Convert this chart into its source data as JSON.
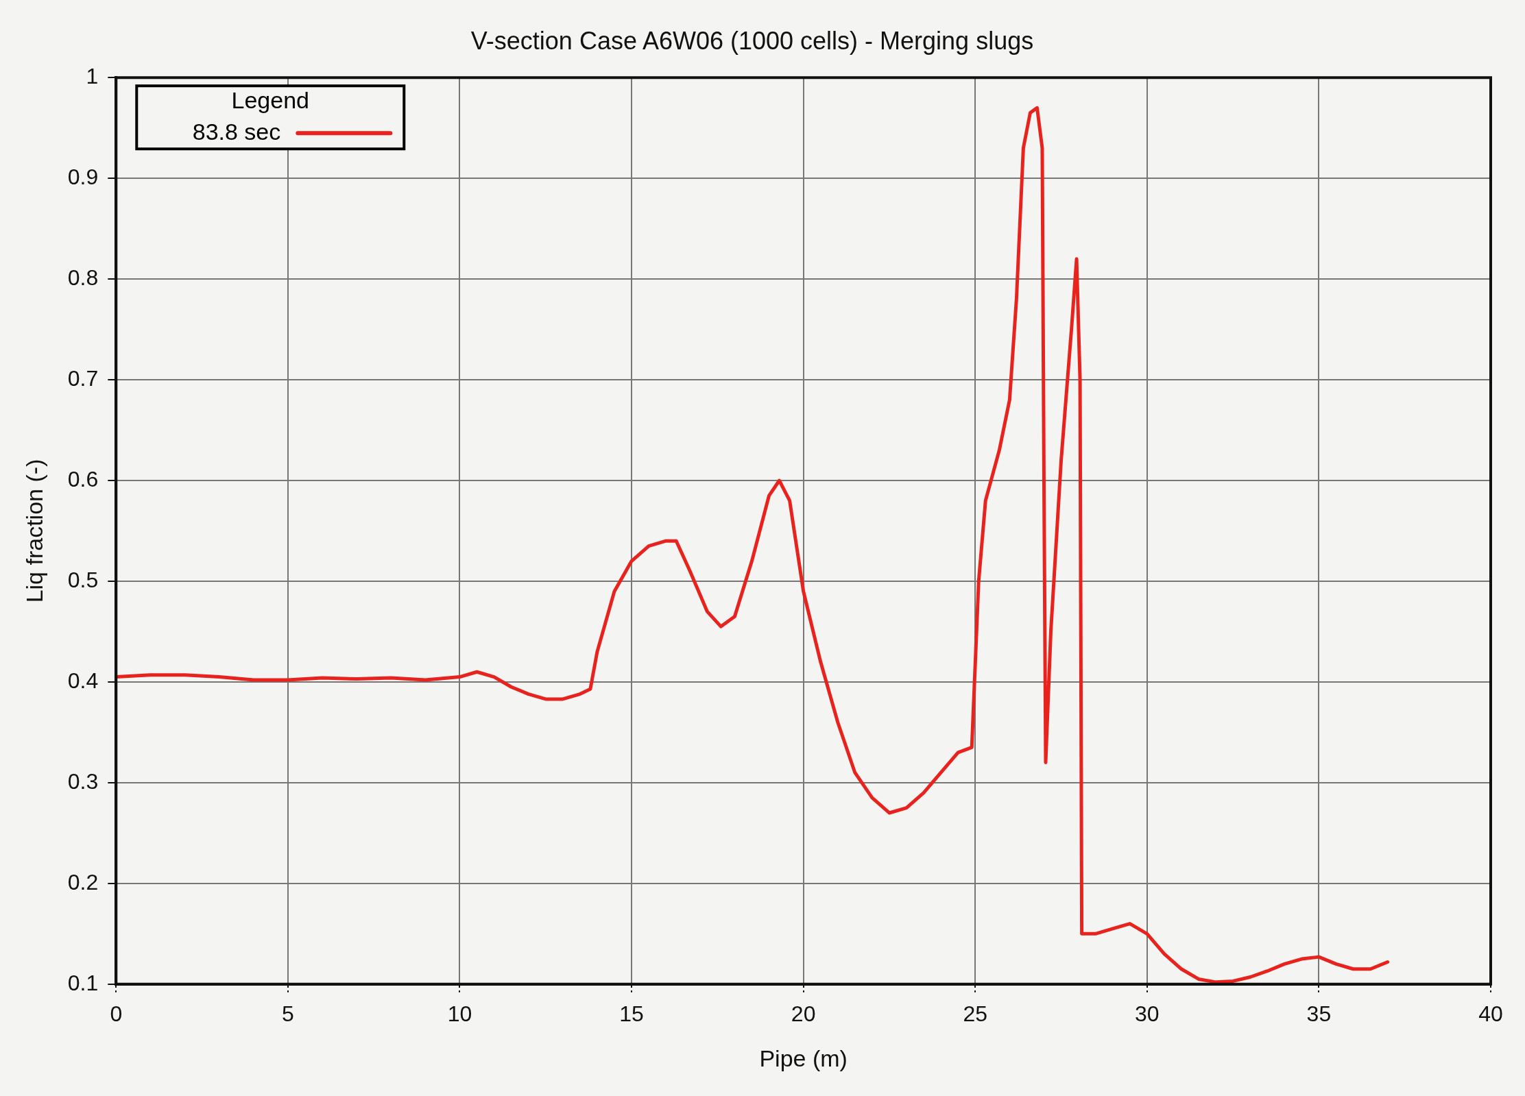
{
  "chart_data": {
    "type": "line",
    "title": "V-section Case A6W06 (1000 cells) - Merging slugs",
    "xlabel": "Pipe (m)",
    "ylabel": "Liq fraction (-)",
    "legend_title": "Legend",
    "legend": "top left",
    "grid": true,
    "marker": "none",
    "line_style": "solid",
    "xlim": [
      0,
      40
    ],
    "xticks": [
      0,
      5,
      10,
      15,
      20,
      25,
      30,
      35,
      40
    ],
    "ylim": [
      0.1,
      1
    ],
    "yticks": [
      0.1,
      0.2,
      0.3,
      0.4,
      0.5,
      0.6,
      0.7,
      0.8,
      0.9,
      1
    ],
    "series": [
      {
        "name": "83.8 sec",
        "color": "#e8231e",
        "x": [
          0,
          1,
          2,
          3,
          4,
          5,
          6,
          7,
          8,
          9,
          10,
          10.5,
          11,
          11.5,
          12,
          12.5,
          13,
          13.5,
          13.8,
          14,
          14.5,
          15,
          15.5,
          16,
          16.3,
          16.7,
          17.2,
          17.6,
          18,
          18.5,
          19,
          19.3,
          19.6,
          20,
          20.5,
          21,
          21.5,
          22,
          22.5,
          23,
          23.5,
          24,
          24.5,
          24.9,
          25.1,
          25.3,
          25.7,
          26,
          26.2,
          26.4,
          26.6,
          26.8,
          26.95,
          27,
          27.05,
          27.2,
          27.5,
          27.8,
          27.95,
          28.05,
          28.1,
          28.5,
          29,
          29.5,
          30,
          30.5,
          31,
          31.5,
          32,
          32.5,
          33,
          33.5,
          34,
          34.5,
          35,
          35.5,
          36,
          36.5,
          37
        ],
        "values": [
          0.405,
          0.407,
          0.407,
          0.405,
          0.402,
          0.402,
          0.404,
          0.403,
          0.404,
          0.402,
          0.405,
          0.41,
          0.405,
          0.395,
          0.388,
          0.383,
          0.383,
          0.388,
          0.393,
          0.43,
          0.49,
          0.52,
          0.535,
          0.54,
          0.54,
          0.51,
          0.47,
          0.455,
          0.465,
          0.52,
          0.585,
          0.6,
          0.58,
          0.49,
          0.42,
          0.36,
          0.31,
          0.285,
          0.27,
          0.275,
          0.29,
          0.31,
          0.33,
          0.335,
          0.5,
          0.58,
          0.63,
          0.68,
          0.78,
          0.93,
          0.965,
          0.97,
          0.93,
          0.6,
          0.32,
          0.45,
          0.62,
          0.75,
          0.82,
          0.7,
          0.15,
          0.15,
          0.155,
          0.16,
          0.15,
          0.13,
          0.115,
          0.105,
          0.102,
          0.103,
          0.107,
          0.113,
          0.12,
          0.125,
          0.127,
          0.12,
          0.115,
          0.115,
          0.122
        ]
      }
    ]
  }
}
